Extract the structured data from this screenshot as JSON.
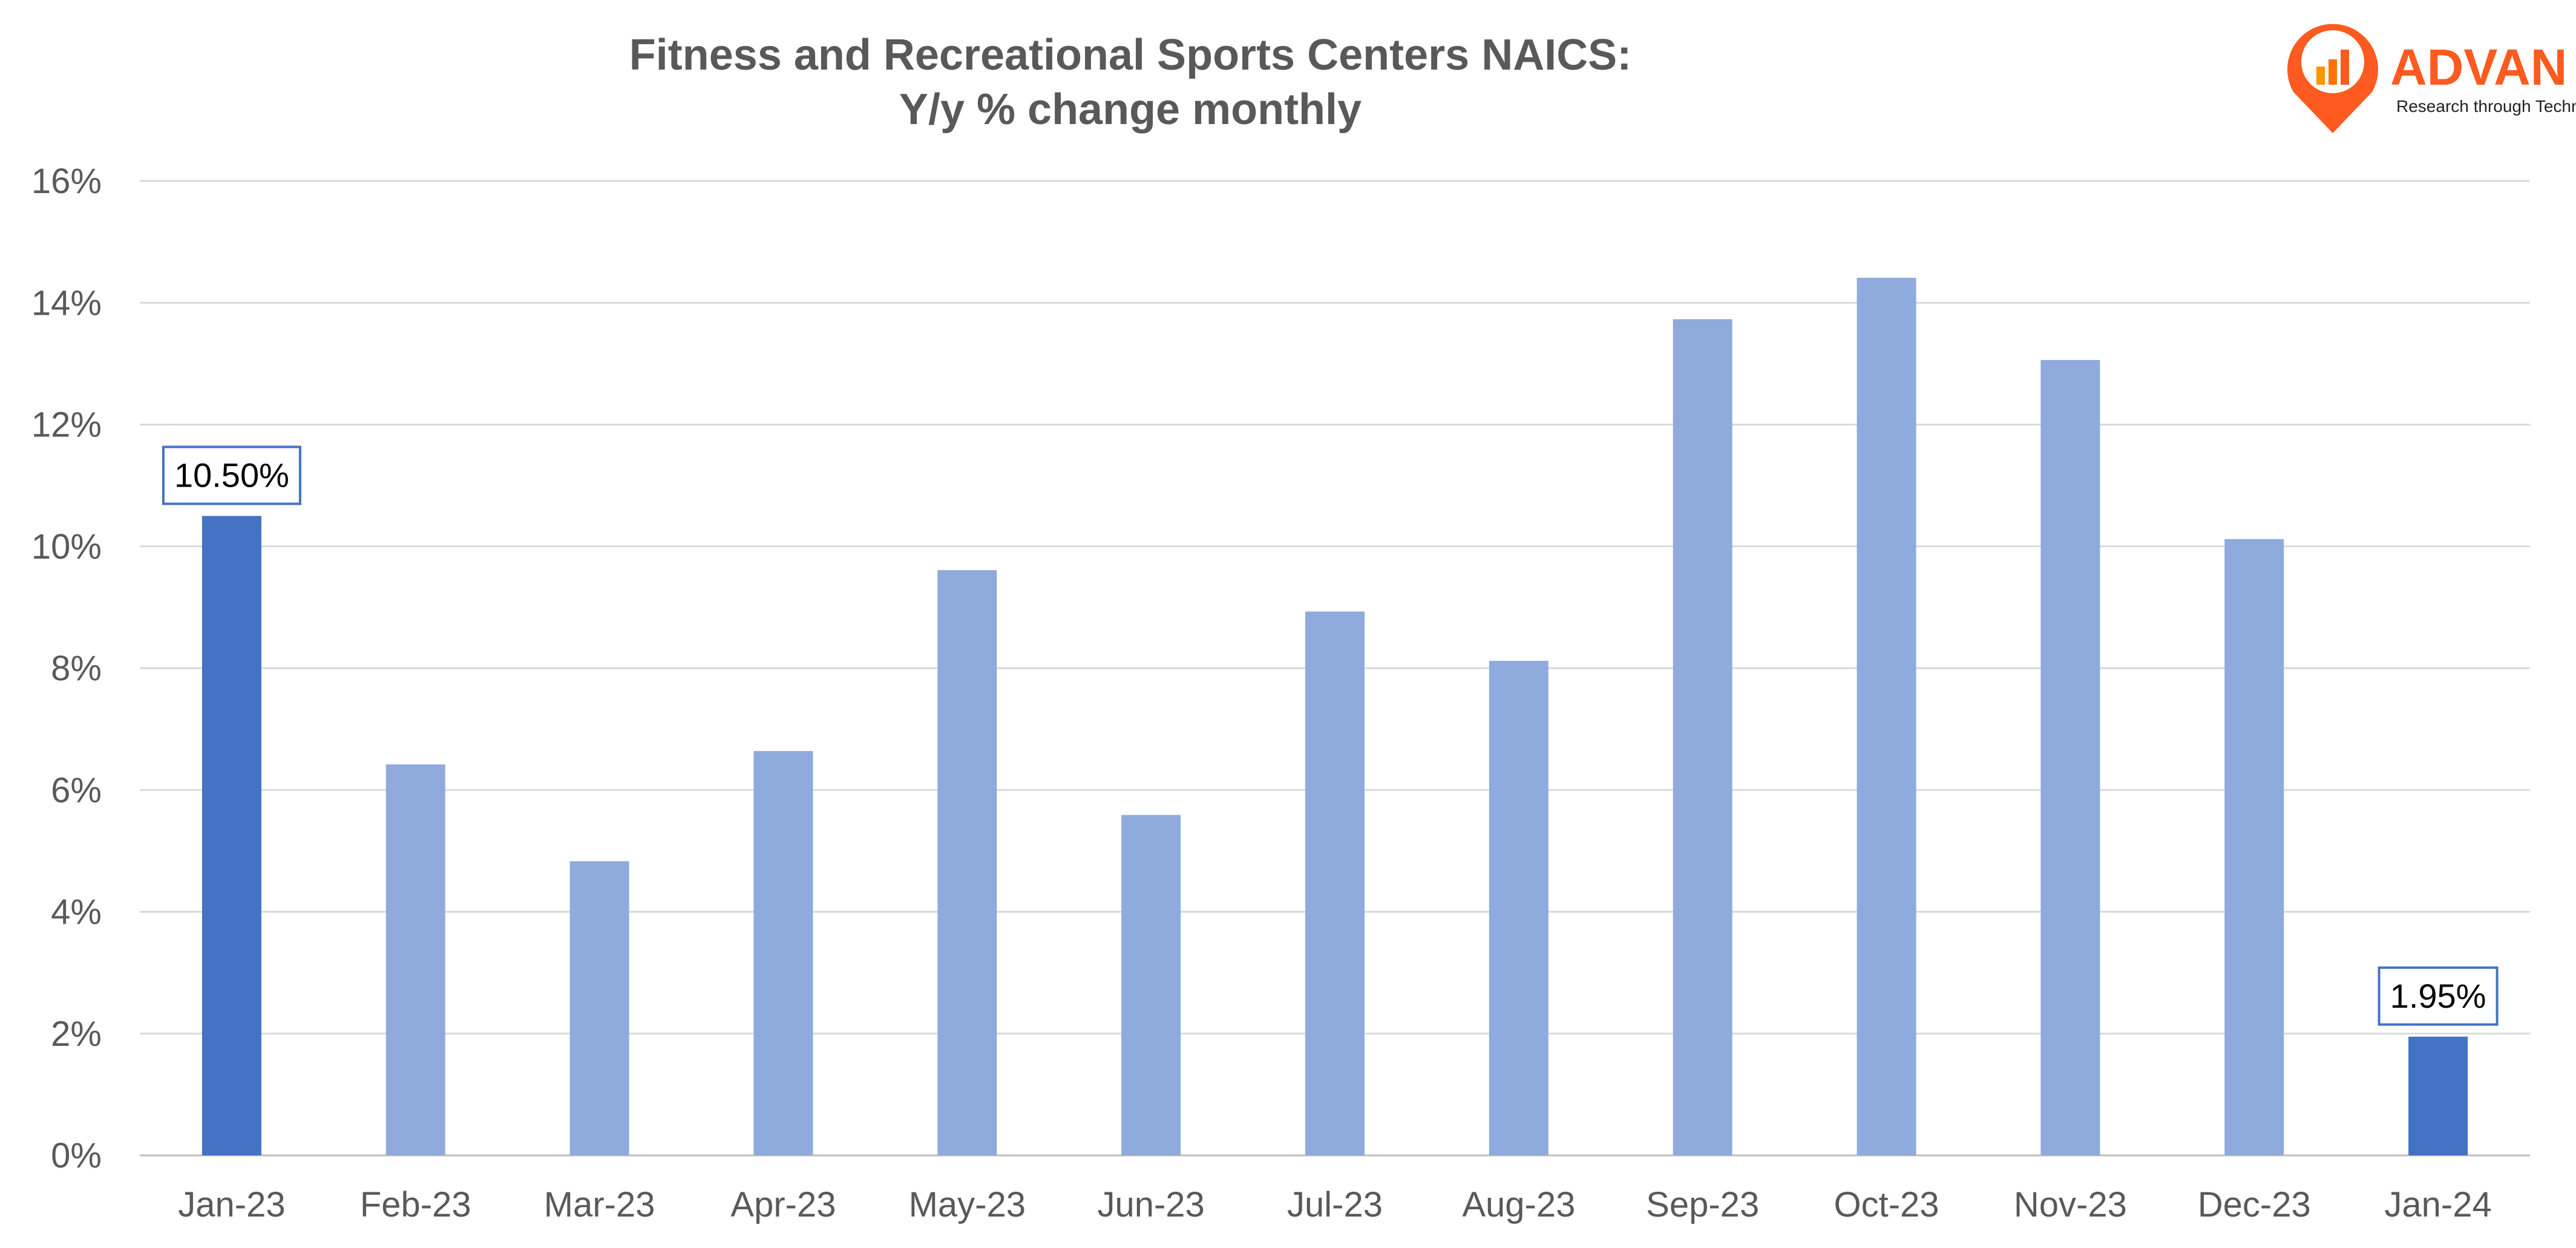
{
  "chart_data": {
    "type": "bar",
    "title": "Fitness and Recreational Sports Centers NAICS:",
    "subtitle": "Y/y % change monthly",
    "xlabel": "",
    "ylabel": "",
    "categories": [
      "Jan-23",
      "Feb-23",
      "Mar-23",
      "Apr-23",
      "May-23",
      "Jun-23",
      "Jul-23",
      "Aug-23",
      "Sep-23",
      "Oct-23",
      "Nov-23",
      "Dec-23",
      "Jan-24"
    ],
    "values": [
      10.5,
      6.42,
      4.83,
      6.64,
      9.61,
      5.59,
      8.93,
      8.12,
      13.73,
      14.41,
      13.06,
      10.12,
      1.95
    ],
    "highlighted": [
      0,
      12
    ],
    "data_labels": {
      "0": "10.50%",
      "12": "1.95%"
    },
    "ylim": [
      0,
      16
    ],
    "yticks": [
      0,
      2,
      4,
      6,
      8,
      10,
      12,
      14,
      16
    ],
    "ytick_labels": [
      "0%",
      "2%",
      "4%",
      "6%",
      "8%",
      "10%",
      "12%",
      "14%",
      "16%"
    ],
    "grid": true,
    "legend": "none",
    "colors": {
      "bar": "#8FAADC",
      "highlight": "#4472C4",
      "grid": "#D9D9D9",
      "text": "#595959",
      "label_border": "#4472C4"
    }
  },
  "logo": {
    "name": "ADVAN",
    "tagline": "Research through Technology",
    "color": "#FF5A1F"
  }
}
